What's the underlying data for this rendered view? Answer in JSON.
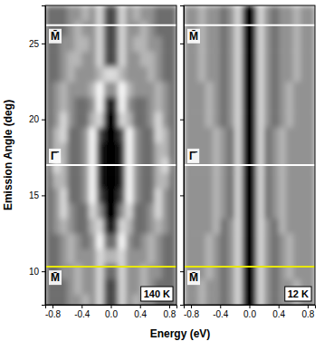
{
  "chart_data": {
    "type": "heatmap",
    "xlabel": "Energy (eV)",
    "ylabel": "Emission Angle (deg)",
    "xlim": [
      -0.9,
      0.9
    ],
    "xticks": [
      -0.8,
      -0.4,
      {
        "value": 0,
        "label": "0.0"
      },
      0.4,
      0.8
    ],
    "ylim": [
      7.8,
      27.5
    ],
    "yticks": [
      10,
      15,
      20,
      25
    ],
    "panels": [
      {
        "annotation": "140 K",
        "tick_labels": true,
        "x": [
          -0.85,
          -0.75,
          -0.65,
          -0.55,
          -0.45,
          -0.35,
          -0.25,
          -0.15,
          -0.05,
          0.05,
          0.15,
          0.25,
          0.35,
          0.45,
          0.55,
          0.65,
          0.75,
          0.85
        ],
        "y": [
          8,
          9,
          10,
          11,
          12,
          13,
          14,
          15,
          16,
          17,
          18,
          19,
          20,
          21,
          22,
          23,
          24,
          25,
          26,
          27
        ],
        "cells": [
          [
            4,
            4,
            4,
            5,
            5,
            6,
            5,
            7,
            3,
            3,
            7,
            5,
            6,
            5,
            5,
            4,
            4,
            4
          ],
          [
            4,
            4,
            4,
            5,
            6,
            5,
            5,
            7,
            3,
            3,
            7,
            5,
            5,
            6,
            5,
            4,
            4,
            4
          ],
          [
            4,
            4,
            5,
            5,
            6,
            5,
            5,
            7,
            4,
            4,
            7,
            5,
            5,
            6,
            5,
            5,
            4,
            4
          ],
          [
            4,
            4,
            5,
            6,
            5,
            5,
            5,
            7,
            6,
            6,
            7,
            5,
            5,
            5,
            6,
            5,
            4,
            4
          ],
          [
            4,
            4,
            5,
            6,
            5,
            4,
            5,
            8,
            4,
            4,
            8,
            5,
            4,
            5,
            6,
            5,
            4,
            4
          ],
          [
            4,
            5,
            6,
            5,
            4,
            4,
            6,
            7,
            2,
            2,
            7,
            6,
            4,
            4,
            5,
            6,
            5,
            4
          ],
          [
            4,
            5,
            7,
            5,
            4,
            4,
            7,
            5,
            1,
            1,
            5,
            7,
            4,
            4,
            5,
            7,
            5,
            4
          ],
          [
            4,
            5,
            7,
            4,
            4,
            5,
            8,
            3,
            1,
            1,
            3,
            8,
            5,
            4,
            4,
            7,
            5,
            4
          ],
          [
            4,
            6,
            6,
            4,
            4,
            5,
            8,
            2,
            1,
            1,
            2,
            8,
            5,
            4,
            4,
            6,
            6,
            4
          ],
          [
            4,
            7,
            6,
            4,
            4,
            5,
            8,
            2,
            1,
            1,
            2,
            8,
            5,
            4,
            4,
            6,
            7,
            4
          ],
          [
            4,
            6,
            6,
            4,
            4,
            5,
            8,
            2,
            1,
            1,
            2,
            8,
            5,
            4,
            4,
            6,
            6,
            4
          ],
          [
            4,
            6,
            7,
            4,
            4,
            5,
            8,
            3,
            1,
            1,
            3,
            8,
            5,
            4,
            4,
            7,
            6,
            4
          ],
          [
            4,
            5,
            7,
            5,
            4,
            4,
            6,
            7,
            1,
            1,
            7,
            6,
            4,
            4,
            5,
            7,
            5,
            4
          ],
          [
            4,
            5,
            6,
            5,
            4,
            4,
            5,
            8,
            2,
            2,
            8,
            5,
            4,
            4,
            5,
            6,
            5,
            4
          ],
          [
            4,
            5,
            6,
            5,
            5,
            5,
            6,
            8,
            5,
            5,
            8,
            6,
            5,
            5,
            5,
            6,
            5,
            4
          ],
          [
            4,
            4,
            5,
            6,
            5,
            5,
            5,
            6,
            7,
            7,
            6,
            5,
            5,
            5,
            6,
            5,
            4,
            4
          ],
          [
            4,
            4,
            5,
            6,
            6,
            5,
            5,
            7,
            3,
            3,
            7,
            5,
            5,
            6,
            6,
            5,
            4,
            4
          ],
          [
            4,
            4,
            5,
            5,
            6,
            6,
            5,
            7,
            3,
            3,
            7,
            5,
            6,
            6,
            5,
            5,
            4,
            4
          ],
          [
            4,
            4,
            4,
            5,
            6,
            5,
            5,
            7,
            3,
            3,
            7,
            5,
            5,
            6,
            5,
            4,
            4,
            4
          ],
          [
            4,
            4,
            4,
            5,
            5,
            6,
            5,
            7,
            3,
            3,
            7,
            5,
            6,
            5,
            5,
            4,
            4,
            4
          ]
        ],
        "lines": [
          {
            "value": 26.2,
            "label": "M̄",
            "color": "#ffffff"
          },
          {
            "value": 17,
            "label": "Γ̄",
            "color": "#ffffff"
          },
          {
            "value": 10.3,
            "label": "M̄",
            "color": "#e8e800"
          }
        ]
      },
      {
        "annotation": "12 K",
        "tick_labels": "x",
        "x": [
          -0.85,
          -0.75,
          -0.65,
          -0.55,
          -0.45,
          -0.35,
          -0.25,
          -0.15,
          -0.05,
          0.05,
          0.15,
          0.25,
          0.35,
          0.45,
          0.55,
          0.65,
          0.75,
          0.85
        ],
        "y": [
          8,
          9,
          10,
          11,
          12,
          13,
          14,
          15,
          16,
          17,
          18,
          19,
          20,
          21,
          22,
          23,
          24,
          25,
          26,
          27
        ],
        "cells": [
          [
            5,
            5,
            6,
            5,
            5,
            4,
            5,
            7,
            1,
            1,
            7,
            5,
            4,
            5,
            5,
            6,
            5,
            5
          ],
          [
            5,
            5,
            6,
            5,
            5,
            4,
            5,
            7,
            1,
            1,
            7,
            5,
            4,
            5,
            5,
            6,
            5,
            5
          ],
          [
            5,
            5,
            5,
            6,
            5,
            4,
            5,
            7,
            1,
            1,
            7,
            5,
            4,
            5,
            6,
            5,
            5,
            5
          ],
          [
            5,
            5,
            5,
            6,
            5,
            4,
            5,
            7,
            1,
            1,
            7,
            5,
            4,
            5,
            6,
            5,
            5,
            5
          ],
          [
            5,
            5,
            5,
            6,
            5,
            4,
            5,
            7,
            1,
            1,
            7,
            5,
            4,
            5,
            6,
            5,
            5,
            5
          ],
          [
            5,
            5,
            5,
            5,
            6,
            4,
            5,
            7,
            1,
            1,
            7,
            5,
            4,
            6,
            5,
            5,
            5,
            5
          ],
          [
            5,
            5,
            5,
            5,
            6,
            5,
            4,
            7,
            1,
            1,
            7,
            4,
            5,
            6,
            5,
            5,
            5,
            5
          ],
          [
            5,
            5,
            5,
            5,
            6,
            5,
            4,
            7,
            1,
            1,
            7,
            4,
            5,
            6,
            5,
            5,
            5,
            5
          ],
          [
            5,
            5,
            5,
            5,
            6,
            5,
            4,
            7,
            1,
            1,
            7,
            4,
            5,
            6,
            5,
            5,
            5,
            5
          ],
          [
            5,
            5,
            5,
            5,
            6,
            5,
            4,
            7,
            1,
            1,
            7,
            4,
            5,
            6,
            5,
            5,
            5,
            5
          ],
          [
            5,
            5,
            5,
            5,
            6,
            5,
            4,
            7,
            1,
            1,
            7,
            4,
            5,
            6,
            5,
            5,
            5,
            5
          ],
          [
            5,
            5,
            5,
            5,
            6,
            5,
            4,
            7,
            1,
            1,
            7,
            4,
            5,
            6,
            5,
            5,
            5,
            5
          ],
          [
            5,
            5,
            5,
            6,
            5,
            4,
            5,
            7,
            1,
            1,
            7,
            5,
            4,
            5,
            6,
            5,
            5,
            5
          ],
          [
            5,
            5,
            5,
            6,
            5,
            4,
            5,
            7,
            1,
            1,
            7,
            5,
            4,
            5,
            6,
            5,
            5,
            5
          ],
          [
            5,
            5,
            5,
            6,
            5,
            4,
            5,
            7,
            1,
            1,
            7,
            5,
            4,
            5,
            6,
            5,
            5,
            5
          ],
          [
            5,
            5,
            6,
            5,
            5,
            4,
            5,
            7,
            1,
            1,
            7,
            5,
            4,
            5,
            5,
            6,
            5,
            5
          ],
          [
            5,
            5,
            6,
            5,
            5,
            4,
            5,
            7,
            1,
            1,
            7,
            5,
            4,
            5,
            5,
            6,
            5,
            5
          ],
          [
            5,
            5,
            6,
            5,
            5,
            4,
            5,
            7,
            1,
            1,
            7,
            5,
            4,
            5,
            5,
            6,
            5,
            5
          ],
          [
            5,
            5,
            6,
            5,
            5,
            4,
            5,
            7,
            1,
            1,
            7,
            5,
            4,
            5,
            5,
            6,
            5,
            5
          ],
          [
            5,
            5,
            6,
            5,
            5,
            4,
            5,
            7,
            1,
            1,
            7,
            5,
            4,
            5,
            5,
            6,
            5,
            5
          ]
        ],
        "lines": [
          {
            "value": 26.2,
            "label": "M̄",
            "color": "#ffffff"
          },
          {
            "value": 17,
            "label": "Γ̄",
            "color": "#ffffff"
          },
          {
            "value": 10.3,
            "label": "M̄",
            "color": "#e8e800"
          }
        ]
      }
    ]
  }
}
